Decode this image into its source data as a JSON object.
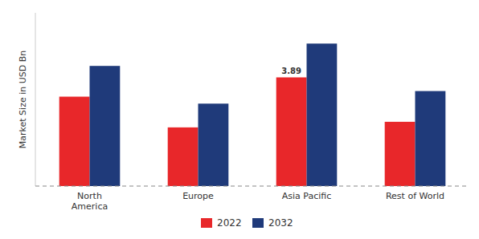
{
  "chart_data": {
    "type": "bar",
    "categories": [
      "North\nAmerica",
      "Europe",
      "Asia Pacific",
      "Rest of World"
    ],
    "series": [
      {
        "name": "2022",
        "color": "#e8272a",
        "values": [
          3.2,
          2.1,
          3.89,
          2.3
        ]
      },
      {
        "name": "2032",
        "color": "#1f3a7a",
        "values": [
          4.3,
          2.95,
          5.1,
          3.4
        ]
      }
    ],
    "ylabel": "Market Size in USD Bn",
    "ylim": [
      0,
      6.2
    ],
    "yticks": [],
    "tick_labels": "x",
    "grid": false,
    "legend": "bottom",
    "annotations": [
      {
        "text": "3.89",
        "category": "Asia Pacific",
        "series": "2022"
      }
    ]
  }
}
